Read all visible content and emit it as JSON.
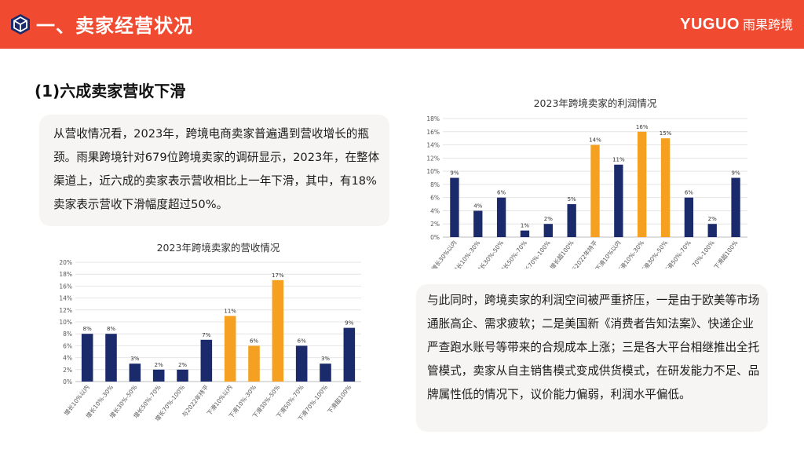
{
  "header": {
    "title": "一、卖家经营状况",
    "brand_en": "YUGUO",
    "brand_cn": "雨果跨境",
    "colors": {
      "bar": "#f04a30",
      "text": "#ffffff"
    },
    "icon": "hexagon-cube-icon"
  },
  "section": {
    "title": "(1)六成卖家营收下滑"
  },
  "paragraph1": "从营收情况看，2023年，跨境电商卖家普遍遇到营收增长的瓶颈。雨果跨境针对679位跨境卖家的调研显示，2023年，在整体渠道上，近六成的卖家表示营收相比上一年下滑，其中，有18%卖家表示营收下滑幅度超过50%。",
  "paragraph2": "与此同时，跨境卖家的利润空间被严重挤压，一是由于欧美等市场通胀高企、需求疲软；二是美国新《消费者告知法案》、快递企业严查跑水账号等带来的合规成本上涨；三是各大平台相继推出全托管模式，卖家从自主销售模式变成供货模式，在研发能力不足、品牌属性低的情况下，议价能力偏弱，利润水平偏低。",
  "chart_data": [
    {
      "type": "bar",
      "title": "2023年跨境卖家的营收情况",
      "categories": [
        "增长10%以内",
        "增长10%-30%",
        "增长30%-50%",
        "增长50%-70%",
        "增长70%-100%",
        "与2022年持平",
        "下滑10%以内",
        "下滑10%-30%",
        "下滑30%-50%",
        "下滑50%-70%",
        "下滑70%-100%",
        "下滑超100%"
      ],
      "values": [
        8,
        8,
        3,
        2,
        2,
        7,
        11,
        6,
        17,
        6,
        3,
        9
      ],
      "value_labels": [
        "8%",
        "8%",
        "3%",
        "2%",
        "2%",
        "7%",
        "11%",
        "6%",
        "17%",
        "6%",
        "3%",
        "9%"
      ],
      "highlight": [
        false,
        false,
        false,
        false,
        false,
        false,
        true,
        true,
        true,
        false,
        false,
        false
      ],
      "ylim": [
        0,
        20
      ],
      "yticks": [
        "0%",
        "2%",
        "4%",
        "6%",
        "8%",
        "10%",
        "12%",
        "14%",
        "16%",
        "18%",
        "20%"
      ],
      "grid": true,
      "colors": {
        "normal": "#1b2a6b",
        "highlight": "#f5a020"
      }
    },
    {
      "type": "bar",
      "title": "2023年跨境卖家的利润情况",
      "categories": [
        "增长30%以内",
        "增长10%-30%",
        "增长30%-50%",
        "增长50%-70%",
        "增长70%-100%",
        "增长超100%",
        "与2022年持平",
        "下滑10%以内",
        "下滑10%-30%",
        "下滑30%-50%",
        "下滑50%-70%",
        "70%-100%",
        "下滑超100%"
      ],
      "values": [
        9,
        4,
        6,
        1,
        2,
        5,
        14,
        11,
        16,
        15,
        6,
        2,
        9
      ],
      "value_labels": [
        "9%",
        "4%",
        "6%",
        "1%",
        "2%",
        "5%",
        "14%",
        "11%",
        "16%",
        "15%",
        "6%",
        "2%",
        "9%"
      ],
      "highlight": [
        false,
        false,
        false,
        false,
        false,
        false,
        true,
        false,
        true,
        true,
        false,
        false,
        false
      ],
      "ylim": [
        0,
        18
      ],
      "yticks": [
        "0%",
        "2%",
        "4%",
        "6%",
        "8%",
        "10%",
        "12%",
        "14%",
        "16%",
        "18%"
      ],
      "grid": true,
      "colors": {
        "normal": "#1b2a6b",
        "highlight": "#f5a020"
      }
    }
  ]
}
